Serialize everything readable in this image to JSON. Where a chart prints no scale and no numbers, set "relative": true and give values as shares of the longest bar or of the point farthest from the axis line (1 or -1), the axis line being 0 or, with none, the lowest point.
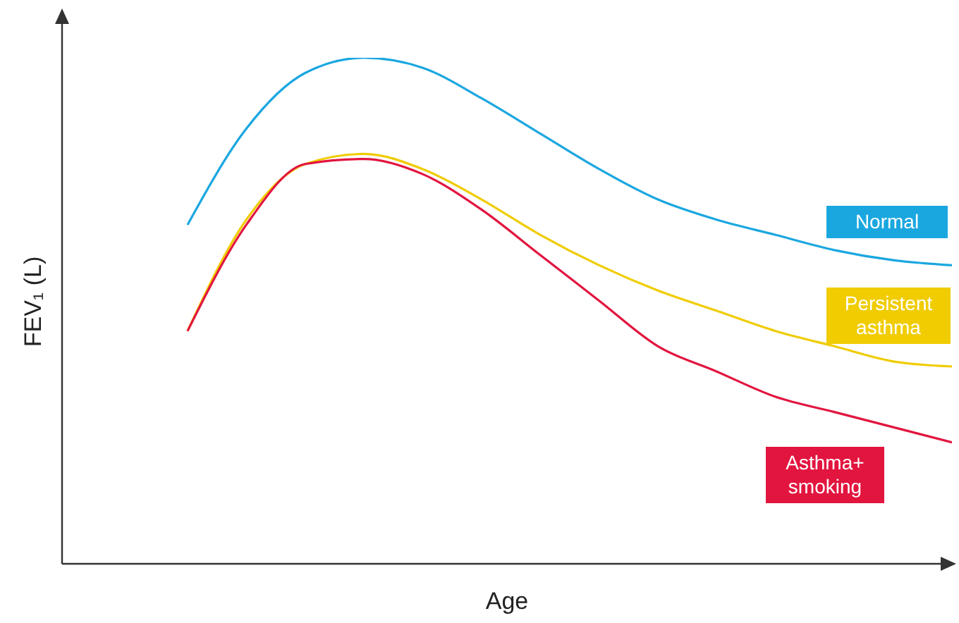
{
  "chart_data": {
    "type": "line",
    "relative": true,
    "xlabel": "Age",
    "ylabel": "FEV₁ (L)",
    "categories": [
      null,
      null,
      null,
      null,
      null,
      null,
      null,
      null,
      null,
      null,
      null,
      null,
      null,
      null
    ],
    "marker": "none",
    "series": [
      {
        "name": "Normal",
        "color": "#1aa7e0",
        "values": [
          0.67,
          0.86,
          0.97,
          1,
          0.98,
          0.92,
          0.85,
          0.78,
          0.72,
          0.68,
          0.65,
          0.62,
          0.6,
          0.59
        ]
      },
      {
        "name": "Persistent asthma",
        "color": "#f0cc00",
        "values": [
          0.46,
          0.68,
          0.79,
          0.81,
          0.78,
          0.72,
          0.65,
          0.59,
          0.54,
          0.5,
          0.46,
          0.43,
          0.4,
          0.39
        ]
      },
      {
        "name": "Asthma+ smoking",
        "color": "#e2153f",
        "values": [
          0.46,
          0.67,
          0.79,
          0.8,
          0.77,
          0.7,
          0.61,
          0.52,
          0.43,
          0.38,
          0.33,
          0.3,
          0.27,
          0.24
        ]
      }
    ]
  }
}
